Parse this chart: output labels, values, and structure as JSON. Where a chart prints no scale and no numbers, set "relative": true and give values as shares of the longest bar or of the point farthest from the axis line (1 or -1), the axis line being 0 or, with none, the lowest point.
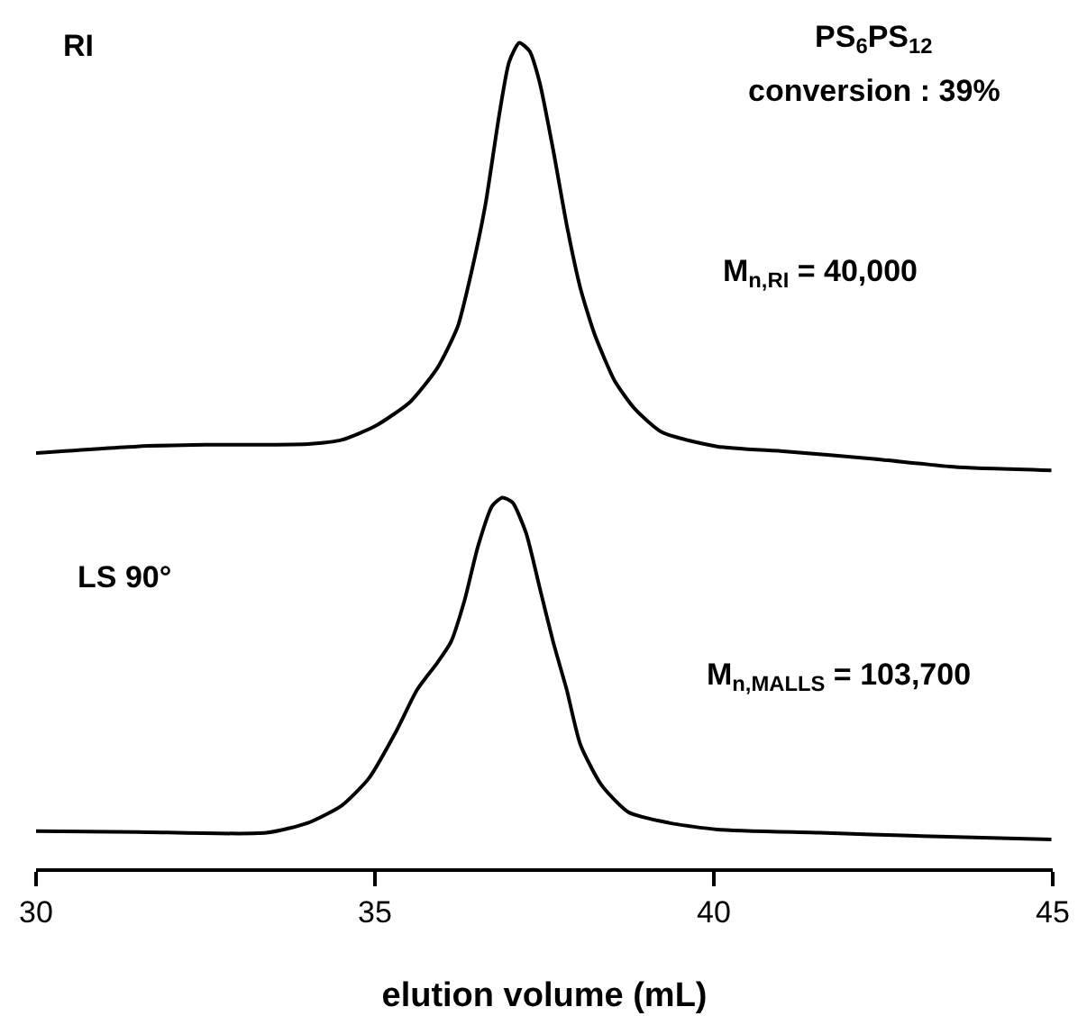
{
  "chart_data": {
    "type": "line",
    "relative": true,
    "xlabel": "elution volume (mL)",
    "xlim": [
      30,
      45
    ],
    "xticks": [
      30,
      35,
      40,
      45
    ],
    "marker": "none",
    "line_style": "solid",
    "tick_labels": "x",
    "annotations": [
      "RI",
      "PS$_{6}$PS$_{12}$",
      "conversion : 39%",
      "M$_{n,RI}$ = 40,000",
      "LS 90°",
      "M$_{n,MALLS}$ = 103,700"
    ],
    "series": [
      {
        "color": "#000000",
        "x": [
          30.0,
          31.49,
          32.5,
          34.01,
          34.51,
          35.01,
          35.52,
          35.92,
          36.22,
          36.42,
          36.63,
          36.83,
          36.98,
          37.13,
          37.28,
          37.43,
          37.63,
          37.83,
          38.03,
          38.24,
          38.54,
          38.84,
          39.24,
          40.05,
          41.06,
          42.36,
          43.57,
          44.98
        ],
        "values": [
          0.503,
          0.511,
          0.513,
          0.514,
          0.519,
          0.536,
          0.565,
          0.606,
          0.656,
          0.721,
          0.804,
          0.911,
          0.977,
          1.0,
          0.99,
          0.952,
          0.87,
          0.779,
          0.703,
          0.647,
          0.59,
          0.556,
          0.528,
          0.511,
          0.505,
          0.496,
          0.486,
          0.482
        ]
      },
      {
        "color": "#000000",
        "x": [
          30.0,
          31.49,
          33.4,
          34.01,
          34.51,
          34.91,
          35.32,
          35.62,
          35.92,
          36.12,
          36.32,
          36.52,
          36.73,
          36.88,
          37.03,
          37.23,
          37.43,
          37.63,
          37.83,
          38.03,
          38.34,
          38.74,
          39.34,
          40.05,
          41.56,
          43.07,
          44.98
        ],
        "values": [
          0.045,
          0.044,
          0.043,
          0.055,
          0.076,
          0.109,
          0.167,
          0.216,
          0.249,
          0.274,
          0.324,
          0.39,
          0.439,
          0.449,
          0.443,
          0.406,
          0.34,
          0.274,
          0.216,
          0.15,
          0.101,
          0.068,
          0.055,
          0.047,
          0.043,
          0.039,
          0.035
        ]
      }
    ]
  }
}
